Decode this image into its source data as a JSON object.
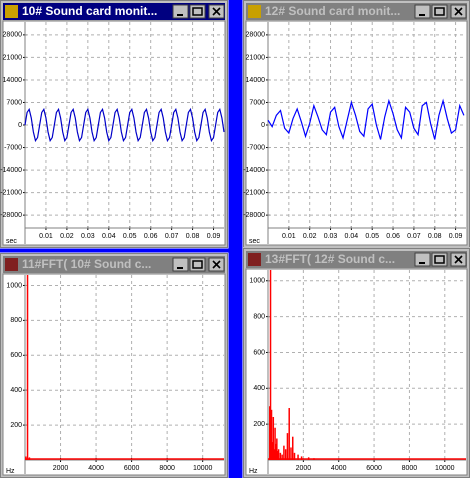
{
  "windows": [
    {
      "title": "10# Sound card monit...",
      "chart": {
        "type": "line",
        "color": "#0000c8",
        "xlabel": "sec",
        "xlim": [
          0,
          0.095
        ],
        "ylim": [
          -32000,
          32000
        ],
        "xticks": [
          0.01,
          0.02,
          0.03,
          0.04,
          0.05,
          0.06,
          0.07,
          0.08,
          0.09
        ],
        "yticks": [
          28000,
          21000,
          14000,
          7000,
          0,
          -7000,
          -14000,
          -21000,
          -28000
        ],
        "grid": true,
        "x": [
          0,
          0.001,
          0.002,
          0.003,
          0.004,
          0.005,
          0.006,
          0.007,
          0.008,
          0.009,
          0.01,
          0.011,
          0.012,
          0.013,
          0.014,
          0.015,
          0.016,
          0.017,
          0.018,
          0.019,
          0.02,
          0.021,
          0.022,
          0.023,
          0.024,
          0.025,
          0.026,
          0.027,
          0.028,
          0.029,
          0.03,
          0.031,
          0.032,
          0.033,
          0.034,
          0.035,
          0.036,
          0.037,
          0.038,
          0.039,
          0.04,
          0.041,
          0.042,
          0.043,
          0.044,
          0.045,
          0.046,
          0.047,
          0.048,
          0.049,
          0.05,
          0.051,
          0.052,
          0.053,
          0.054,
          0.055,
          0.056,
          0.057,
          0.058,
          0.059,
          0.06,
          0.061,
          0.062,
          0.063,
          0.064,
          0.065,
          0.066,
          0.067,
          0.068,
          0.069,
          0.07,
          0.071,
          0.072,
          0.073,
          0.074,
          0.075,
          0.076,
          0.077,
          0.078,
          0.079,
          0.08,
          0.081,
          0.082,
          0.083,
          0.084,
          0.085,
          0.086,
          0.087,
          0.088,
          0.089,
          0.09,
          0.091,
          0.092,
          0.093,
          0.094,
          0.095
        ],
        "values": [
          0,
          3909,
          4875,
          2169,
          -2169,
          -4875,
          -3909,
          0,
          3909,
          4875,
          2169,
          -2169,
          -4875,
          -3909,
          0,
          3909,
          4875,
          2169,
          -2169,
          -4875,
          -3909,
          0,
          3909,
          4875,
          2169,
          -2169,
          -4875,
          -3909,
          0,
          3909,
          4875,
          2169,
          -2169,
          -4875,
          -3909,
          0,
          3909,
          4875,
          2169,
          -2169,
          -4875,
          -3909,
          0,
          3909,
          4875,
          2169,
          -2169,
          -4875,
          -3909,
          0,
          3909,
          4875,
          2169,
          -2169,
          -4875,
          -3909,
          0,
          3909,
          4875,
          2169,
          -2169,
          -4875,
          -3909,
          0,
          3909,
          4875,
          2169,
          -2169,
          -4875,
          -3909,
          0,
          3909,
          4875,
          2169,
          -2169,
          -4875,
          -3909,
          0,
          3909,
          4875,
          2169,
          -2169,
          -4875,
          -3909,
          0,
          3909,
          4875,
          2169,
          -2169,
          -4875,
          -3909,
          0,
          3909,
          4875,
          2169,
          -2169
        ]
      }
    },
    {
      "title": "12# Sound card monit...",
      "chart": {
        "type": "line",
        "color": "#0000ff",
        "xlabel": "sec",
        "xlim": [
          0,
          0.095
        ],
        "ylim": [
          -32000,
          32000
        ],
        "xticks": [
          0.01,
          0.02,
          0.03,
          0.04,
          0.05,
          0.06,
          0.07,
          0.08,
          0.09
        ],
        "yticks": [
          28000,
          21000,
          14000,
          7000,
          0,
          -7000,
          -14000,
          -21000,
          -28000
        ],
        "grid": true,
        "x": [
          0,
          0.002,
          0.004,
          0.006,
          0.008,
          0.01,
          0.012,
          0.014,
          0.016,
          0.018,
          0.02,
          0.022,
          0.024,
          0.026,
          0.028,
          0.03,
          0.032,
          0.034,
          0.036,
          0.038,
          0.04,
          0.042,
          0.044,
          0.046,
          0.048,
          0.05,
          0.052,
          0.054,
          0.056,
          0.058,
          0.06,
          0.062,
          0.064,
          0.066,
          0.068,
          0.07,
          0.072,
          0.074,
          0.076,
          0.078,
          0.08,
          0.082,
          0.084,
          0.086,
          0.088,
          0.09,
          0.092,
          0.094
        ],
        "values": [
          1500,
          -500,
          3000,
          4500,
          -1000,
          -2500,
          2000,
          5000,
          1000,
          -3500,
          500,
          6000,
          2500,
          -1500,
          -3000,
          4000,
          5500,
          -500,
          -4000,
          1500,
          7000,
          3000,
          -2000,
          -3500,
          5000,
          6500,
          0,
          -4500,
          2500,
          7500,
          3500,
          -1500,
          -4000,
          5500,
          4000,
          -1000,
          -3000,
          6000,
          7000,
          500,
          -4500,
          3000,
          7500,
          2000,
          -2500,
          -1500,
          6000,
          3000
        ]
      }
    },
    {
      "title": "11#FFT( 10# Sound c...",
      "chart": {
        "type": "spike",
        "color": "#ff0000",
        "xlabel": "Hz",
        "xlim": [
          0,
          11200
        ],
        "ylim": [
          0,
          1060
        ],
        "xticks": [
          2000,
          4000,
          6000,
          8000,
          10000
        ],
        "yticks": [
          1000,
          800,
          600,
          400,
          200
        ],
        "grid": true,
        "x": [
          50,
          143,
          250
        ],
        "values": [
          20,
          1060,
          15
        ]
      }
    },
    {
      "title": "13#FFT( 12# Sound c...",
      "chart": {
        "type": "spike",
        "color": "#ff0000",
        "xlabel": "Hz",
        "xlim": [
          0,
          11200
        ],
        "ylim": [
          0,
          1060
        ],
        "xticks": [
          2000,
          4000,
          6000,
          8000,
          10000
        ],
        "yticks": [
          1000,
          800,
          600,
          400,
          200
        ],
        "grid": true,
        "x": [
          100,
          143,
          200,
          250,
          300,
          350,
          400,
          450,
          500,
          550,
          600,
          700,
          800,
          900,
          1000,
          1100,
          1200,
          1300,
          1400,
          1500,
          1700,
          1900,
          2300,
          2600
        ],
        "values": [
          300,
          1060,
          280,
          100,
          240,
          60,
          180,
          90,
          120,
          50,
          60,
          40,
          30,
          80,
          60,
          150,
          290,
          70,
          130,
          40,
          30,
          20,
          15,
          10
        ]
      }
    }
  ]
}
